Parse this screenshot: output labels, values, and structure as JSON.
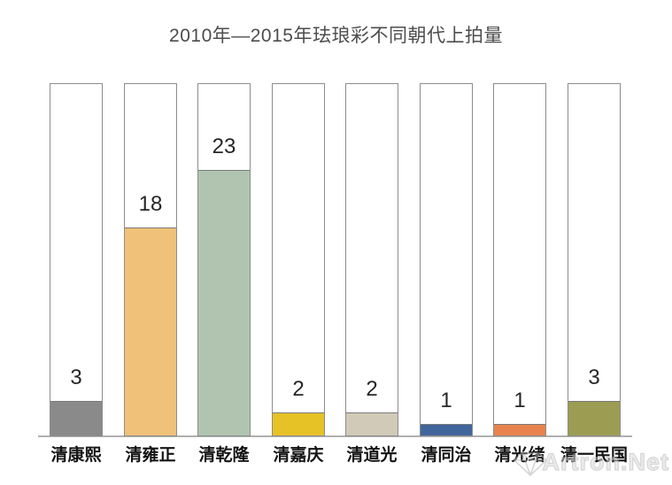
{
  "title": "2010年—2015年珐琅彩不同朝代上拍量",
  "watermark": {
    "text": "Artron.Net",
    "icon": "gem-diamond-logo"
  },
  "chart_data": {
    "type": "bar",
    "title": "2010年—2015年珐琅彩不同朝代上拍量",
    "categories": [
      "清康熙",
      "清雍正",
      "清乾隆",
      "清嘉庆",
      "清道光",
      "清同治",
      "清光绪",
      "清一民国"
    ],
    "values": [
      3,
      18,
      23,
      2,
      2,
      1,
      1,
      3
    ],
    "bar_colors": [
      "#8a8a8a",
      "#f0c179",
      "#b0c4af",
      "#e6c226",
      "#d2cab8",
      "#41669c",
      "#e8834d",
      "#9c9c52"
    ],
    "value_labels_shown": true,
    "xlabel": "",
    "ylabel": "",
    "ylim": [
      0,
      30.6
    ],
    "gridlines": false,
    "legend": "none",
    "background_columns": {
      "full_height": true,
      "fill": "#ffffff",
      "border_color": "#8c8c8c"
    },
    "x_axis_line_color": "#b0b0b0"
  }
}
